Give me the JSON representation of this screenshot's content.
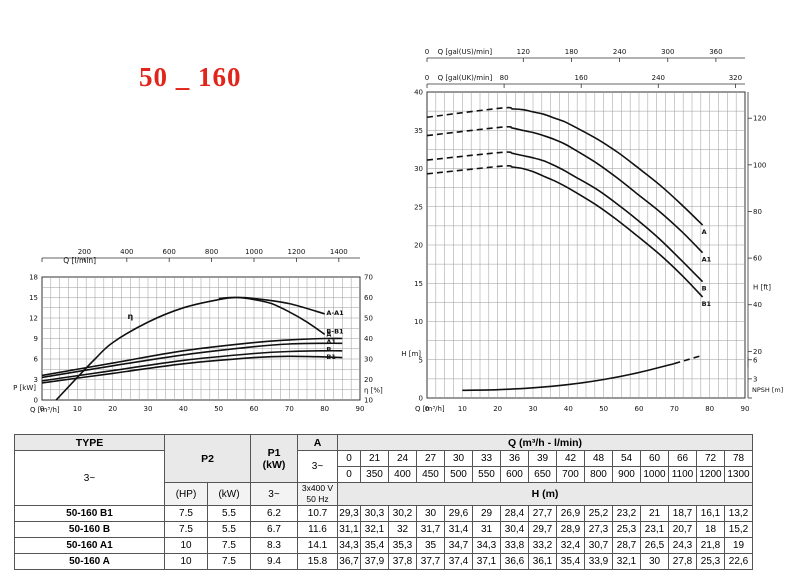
{
  "title": "50 _ 160",
  "chart_data": [
    {
      "type": "line",
      "id": "power-efficiency",
      "x_top": {
        "label": "Q [l/min]",
        "ticks": [
          0,
          200,
          400,
          600,
          800,
          1000,
          1200,
          1400
        ]
      },
      "x": {
        "label": "Q [m³/h]",
        "ticks": [
          0,
          10,
          20,
          30,
          40,
          50,
          60,
          70,
          80,
          90
        ],
        "range": [
          0,
          90
        ]
      },
      "y_left": {
        "label": "P [kW]",
        "ticks": [
          0,
          3,
          6,
          9,
          12,
          15,
          18
        ],
        "range": [
          0,
          18
        ]
      },
      "y_right": {
        "label": "η [%]",
        "ticks": [
          10,
          20,
          30,
          40,
          50,
          60,
          70
        ],
        "range": [
          10,
          70
        ]
      },
      "grid": true,
      "series": [
        {
          "name": "A-A1",
          "axis": "right",
          "x": [
            4,
            10,
            15,
            20,
            30,
            40,
            50,
            55,
            60,
            70,
            80
          ],
          "values": [
            10,
            21,
            30,
            38,
            48,
            55,
            59,
            60,
            59.5,
            57,
            52
          ]
        },
        {
          "name": "B-B1",
          "axis": "right",
          "x": [
            50,
            55,
            60,
            65,
            70,
            75,
            80
          ],
          "values": [
            59.5,
            60,
            59,
            57,
            53,
            48,
            42
          ]
        },
        {
          "name": "η",
          "axis": "right",
          "x": [],
          "values": []
        },
        {
          "name": "A",
          "axis": "left",
          "x": [
            0,
            20,
            40,
            60,
            70,
            80,
            85
          ],
          "values": [
            3.6,
            5.4,
            7.2,
            8.4,
            8.8,
            9.0,
            9.0
          ]
        },
        {
          "name": "A1",
          "axis": "left",
          "x": [
            0,
            20,
            40,
            60,
            70,
            80,
            85
          ],
          "values": [
            3.3,
            5.0,
            6.6,
            7.8,
            8.2,
            8.3,
            8.3
          ]
        },
        {
          "name": "B",
          "axis": "left",
          "x": [
            0,
            20,
            40,
            60,
            70,
            80,
            85
          ],
          "values": [
            2.8,
            4.3,
            5.8,
            6.8,
            7.1,
            7.2,
            7.2
          ]
        },
        {
          "name": "B1",
          "axis": "left",
          "x": [
            0,
            20,
            40,
            60,
            70,
            80,
            85
          ],
          "values": [
            2.5,
            3.9,
            5.3,
            6.2,
            6.4,
            6.3,
            6.2
          ]
        }
      ]
    },
    {
      "type": "line",
      "id": "head-npsh",
      "x_top1": {
        "label": "Q [gal(US)/min]",
        "ticks": [
          0,
          120,
          180,
          240,
          300,
          360
        ]
      },
      "x_top2": {
        "label": "Q [gal(UK)/min]",
        "ticks": [
          0,
          80,
          160,
          240,
          320
        ]
      },
      "x": {
        "label": "Q [m³/h]",
        "ticks": [
          0,
          10,
          20,
          30,
          40,
          50,
          60,
          70,
          80,
          90
        ],
        "range": [
          0,
          90
        ]
      },
      "y_left": {
        "label": "H [m]",
        "ticks": [
          0,
          5,
          10,
          15,
          20,
          25,
          30,
          35,
          40
        ],
        "range": [
          0,
          40
        ]
      },
      "y_right_ft": {
        "label": "H [ft]",
        "ticks": [
          20,
          40,
          60,
          80,
          100,
          120
        ]
      },
      "y_right_npsh": {
        "label": "NPSH [m]",
        "ticks": [
          0,
          3,
          6
        ]
      },
      "grid": true,
      "series": [
        {
          "name": "A",
          "x": [
            0,
            21,
            24,
            27,
            30,
            33,
            36,
            39,
            42,
            48,
            54,
            60,
            66,
            72,
            78
          ],
          "values": [
            36.7,
            37.9,
            37.8,
            37.7,
            37.4,
            37.1,
            36.6,
            36.1,
            35.4,
            33.9,
            32.1,
            30,
            27.8,
            25.3,
            22.6
          ]
        },
        {
          "name": "A1",
          "x": [
            0,
            21,
            24,
            27,
            30,
            33,
            36,
            39,
            42,
            48,
            54,
            60,
            66,
            72,
            78
          ],
          "values": [
            34.3,
            35.4,
            35.3,
            35,
            34.7,
            34.3,
            33.8,
            33.2,
            32.4,
            30.7,
            28.7,
            26.5,
            24.3,
            21.8,
            19
          ]
        },
        {
          "name": "B",
          "x": [
            0,
            21,
            24,
            27,
            30,
            33,
            36,
            39,
            42,
            48,
            54,
            60,
            66,
            72,
            78
          ],
          "values": [
            31.1,
            32.1,
            32,
            31.7,
            31.4,
            31,
            30.4,
            29.7,
            28.9,
            27.3,
            25.3,
            23.1,
            20.7,
            18,
            15.2
          ]
        },
        {
          "name": "B1",
          "x": [
            0,
            21,
            24,
            27,
            30,
            33,
            36,
            39,
            42,
            48,
            54,
            60,
            66,
            72,
            78
          ],
          "values": [
            29.3,
            30.3,
            30.2,
            30,
            29.6,
            29,
            28.4,
            27.7,
            26.9,
            25.2,
            23.2,
            21,
            18.7,
            16.1,
            13.2
          ]
        },
        {
          "name": "NPSH",
          "x": [
            10,
            20,
            30,
            40,
            50,
            60,
            70,
            78
          ],
          "values": [
            1.2,
            1.3,
            1.6,
            2.1,
            2.9,
            4.0,
            5.4,
            6.7
          ]
        }
      ]
    },
    {
      "type": "table",
      "header": {
        "type": "TYPE",
        "p2": "P2",
        "p1": "P1\n(kW)",
        "amp": "A",
        "q": "Q (m³/h - l/min)",
        "phase": "3~",
        "amp_phase": "3~",
        "h": "H (m)",
        "hp": "(HP)",
        "kw": "(kW)",
        "p1_phase": "3~",
        "voltage": "3x400 V\n50 Hz"
      },
      "q_m3h": [
        "0",
        "21",
        "24",
        "27",
        "30",
        "33",
        "36",
        "39",
        "42",
        "48",
        "54",
        "60",
        "66",
        "72",
        "78"
      ],
      "q_lmin": [
        "0",
        "350",
        "400",
        "450",
        "500",
        "550",
        "600",
        "650",
        "700",
        "800",
        "900",
        "1000",
        "1100",
        "1200",
        "1300"
      ],
      "rows": [
        {
          "type": "50-160 B1",
          "hp": "7.5",
          "kw": "5.5",
          "p1": "6.2",
          "a": "10.7",
          "h": [
            "29,3",
            "30,3",
            "30,2",
            "30",
            "29,6",
            "29",
            "28,4",
            "27,7",
            "26,9",
            "25,2",
            "23,2",
            "21",
            "18,7",
            "16,1",
            "13,2"
          ]
        },
        {
          "type": "50-160 B",
          "hp": "7.5",
          "kw": "5.5",
          "p1": "6.7",
          "a": "11.6",
          "h": [
            "31,1",
            "32,1",
            "32",
            "31,7",
            "31,4",
            "31",
            "30,4",
            "29,7",
            "28,9",
            "27,3",
            "25,3",
            "23,1",
            "20,7",
            "18",
            "15,2"
          ]
        },
        {
          "type": "50-160 A1",
          "hp": "10",
          "kw": "7.5",
          "p1": "8.3",
          "a": "14.1",
          "h": [
            "34,3",
            "35,4",
            "35,3",
            "35",
            "34,7",
            "34,3",
            "33,8",
            "33,2",
            "32,4",
            "30,7",
            "28,7",
            "26,5",
            "24,3",
            "21,8",
            "19"
          ]
        },
        {
          "type": "50-160 A",
          "hp": "10",
          "kw": "7.5",
          "p1": "9.4",
          "a": "15.8",
          "h": [
            "36,7",
            "37,9",
            "37,8",
            "37,7",
            "37,4",
            "37,1",
            "36,6",
            "36,1",
            "35,4",
            "33,9",
            "32,1",
            "30",
            "27,8",
            "25,3",
            "22,6"
          ]
        }
      ]
    }
  ]
}
